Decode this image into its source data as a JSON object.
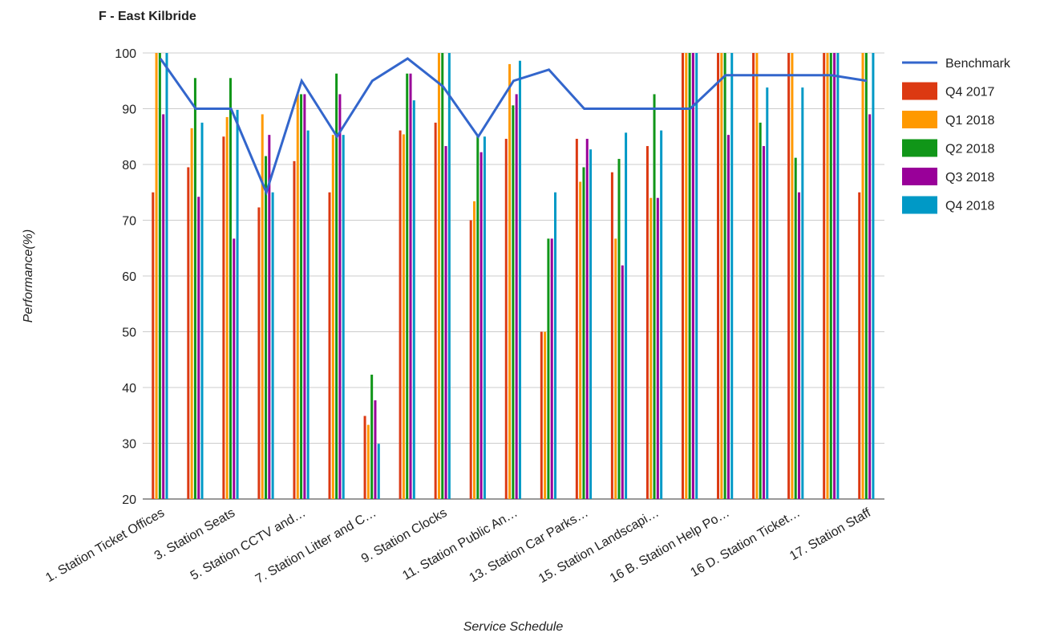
{
  "chart_data": {
    "type": "bar",
    "title": "F - East Kilbride",
    "x_label": "Service Schedule",
    "y_label": "Performance(%)",
    "categories": [
      "1. Station Ticket Offices",
      null,
      "3. Station Seats",
      null,
      "5. Station CCTV and…",
      null,
      "7. Station Litter and C…",
      null,
      "9. Station Clocks",
      null,
      "11. Station Public An…",
      null,
      "13. Station Car Parks…",
      null,
      "15. Station Landscapi…",
      null,
      "16 B. Station Help Po…",
      null,
      "16 D. Station Ticket…",
      null,
      "17. Station Staff"
    ],
    "ylim": [
      20,
      100
    ],
    "yticks": [
      20,
      30,
      40,
      50,
      60,
      70,
      80,
      90,
      100
    ],
    "grid": true,
    "legend": "right",
    "series": [
      {
        "name": "Benchmark",
        "type": "line",
        "color": "#3366cc",
        "values": [
          99,
          90,
          90,
          75,
          95,
          85,
          95,
          99,
          94,
          85,
          95,
          97,
          90,
          90,
          90,
          90,
          96,
          96,
          96,
          96,
          95
        ]
      },
      {
        "name": "Q4 2017",
        "type": "bar",
        "color": "#dc3912",
        "values": [
          75,
          79.5,
          85,
          72.3,
          80.6,
          75,
          34.9,
          86.1,
          87.5,
          70,
          84.6,
          50,
          84.6,
          78.6,
          83.3,
          100,
          100,
          100,
          100,
          100,
          75
        ]
      },
      {
        "name": "Q1 2018",
        "type": "bar",
        "color": "#ff9900",
        "values": [
          100,
          86.5,
          88.5,
          89,
          92.6,
          85.3,
          33.3,
          85.4,
          100,
          73.4,
          98,
          50,
          76.9,
          66.7,
          74,
          100,
          100,
          100,
          100,
          100,
          100
        ]
      },
      {
        "name": "Q2 2018",
        "type": "bar",
        "color": "#109618",
        "values": [
          100,
          95.5,
          95.5,
          81.5,
          92.6,
          96.3,
          42.3,
          96.3,
          100,
          85.3,
          90.6,
          66.7,
          79.5,
          81,
          92.6,
          100,
          100,
          87.5,
          81.2,
          100,
          100
        ]
      },
      {
        "name": "Q3 2018",
        "type": "bar",
        "color": "#990099",
        "values": [
          89,
          74.2,
          66.7,
          85.3,
          92.6,
          92.6,
          37.7,
          96.3,
          83.3,
          82.2,
          92.6,
          66.7,
          84.6,
          61.9,
          74,
          100,
          85.3,
          83.3,
          75,
          100,
          89
        ]
      },
      {
        "name": "Q4 2018",
        "type": "bar",
        "color": "#0099c6",
        "values": [
          100,
          87.5,
          89.8,
          75,
          86.1,
          85.3,
          29.9,
          91.5,
          100,
          85,
          98.6,
          75,
          82.7,
          85.7,
          86.1,
          100,
          100,
          93.8,
          93.8,
          100,
          100
        ]
      }
    ]
  }
}
